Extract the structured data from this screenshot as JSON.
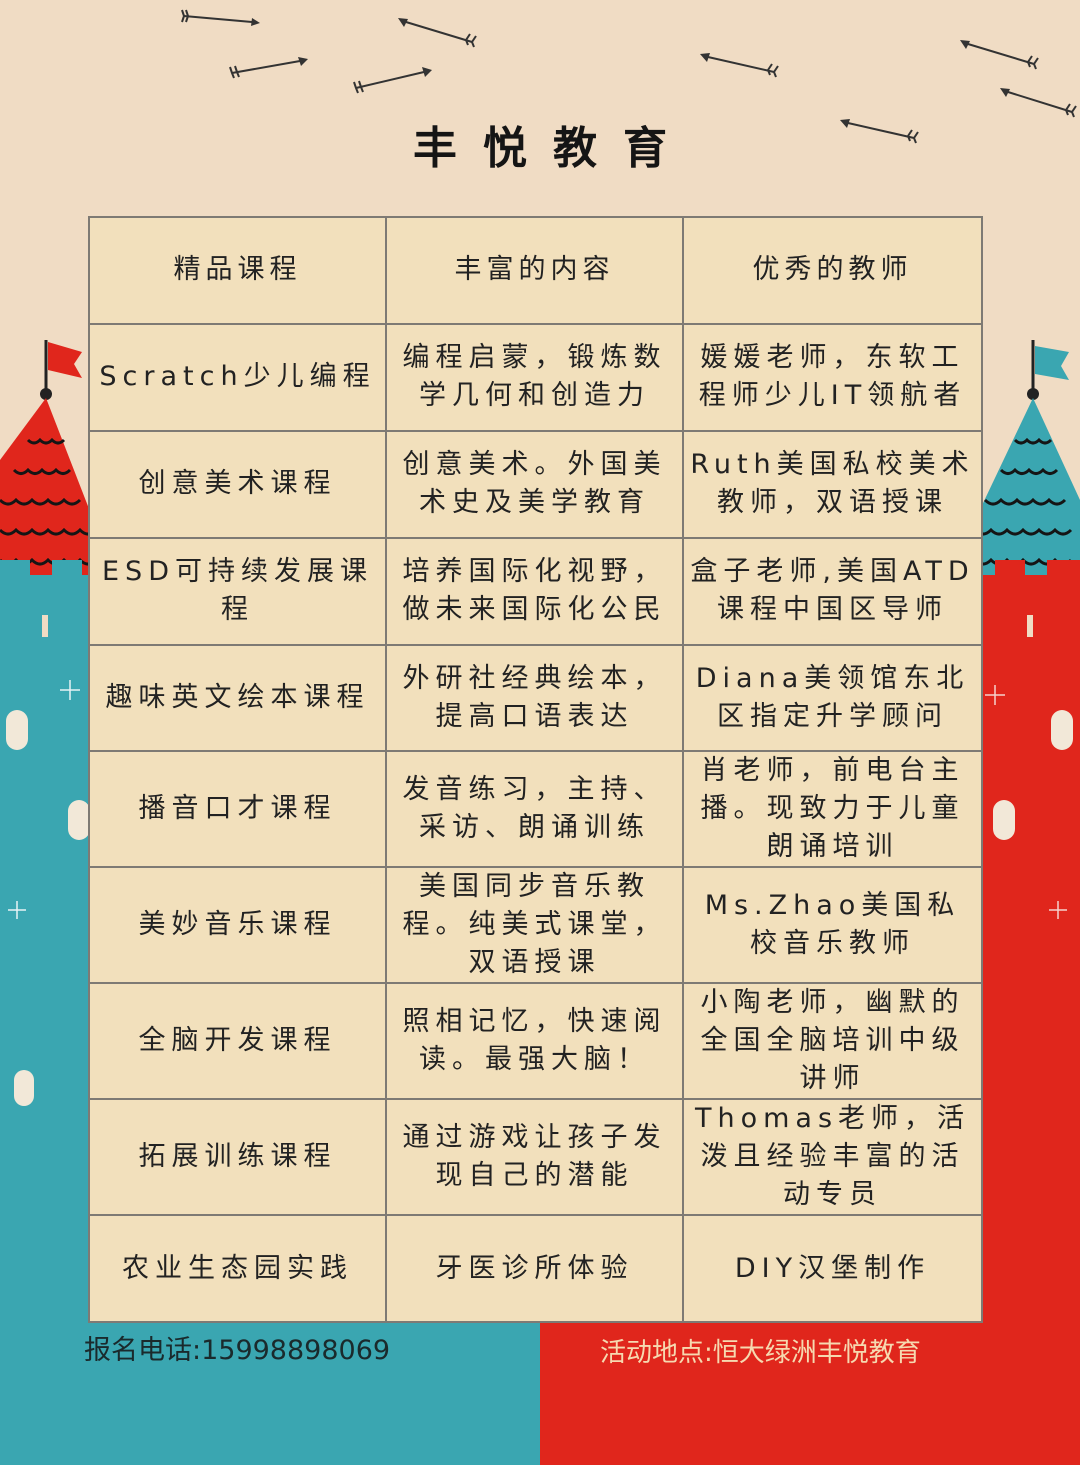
{
  "title": "丰悦教育",
  "table": {
    "headers": [
      "精品课程",
      "丰富的内容",
      "优秀的教师"
    ],
    "rows": [
      [
        "Scratch少儿编程",
        "编程启蒙，锻炼数学几何和创造力",
        "媛媛老师，东软工程师少儿IT领航者"
      ],
      [
        "创意美术课程",
        "创意美术。外国美术史及美学教育",
        "Ruth美国私校美术教师，双语授课"
      ],
      [
        "ESD可持续发展课程",
        "培养国际化视野，做未来国际化公民",
        "盒子老师,美国ATD课程中国区导师"
      ],
      [
        "趣味英文绘本课程",
        "外研社经典绘本，提高口语表达",
        "Diana美领馆东北区指定升学顾问"
      ],
      [
        "播音口才课程",
        "发音练习，主持、采访、朗诵训练",
        "肖老师，前电台主播。现致力于儿童朗诵培训"
      ],
      [
        "美妙音乐课程",
        "美国同步音乐教程。纯美式课堂，双语授课",
        "Ms.Zhao美国私校音乐教师"
      ],
      [
        "全脑开发课程",
        "照相记忆，快速阅读。最强大脑！",
        "小陶老师，幽默的全国全脑培训中级讲师"
      ],
      [
        "拓展训练课程",
        "通过游戏让孩子发现自己的潜能",
        "Thomas老师，活泼且经验丰富的活动专员"
      ],
      [
        "农业生态园实践",
        "牙医诊所体验",
        "DIY汉堡制作"
      ]
    ]
  },
  "footer": {
    "phone": "报名电话:15998898069",
    "address": "活动地点:恒大绿洲丰悦教育"
  },
  "colors": {
    "background": "#f0dcc4",
    "teal": "#3aa6b1",
    "red": "#e0261c",
    "table_fill": "#f2e0bc"
  },
  "icons": [
    "arrow-icon",
    "castle-tower-left",
    "castle-tower-right",
    "flag-icon"
  ]
}
